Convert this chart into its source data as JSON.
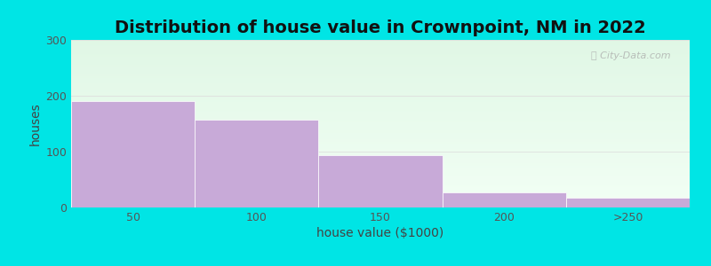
{
  "title": "Distribution of house value in Crownpoint, NM in 2022",
  "xlabel": "house value ($1000)",
  "ylabel": "houses",
  "categories": [
    "50",
    "100",
    "150",
    "200",
    ">250"
  ],
  "values": [
    190,
    157,
    94,
    27,
    17
  ],
  "bar_color": "#c8aad8",
  "bar_edgecolor": "#c8aad8",
  "ylim": [
    0,
    300
  ],
  "yticks": [
    0,
    100,
    200,
    300
  ],
  "background_outer": "#00e5e5",
  "title_fontsize": 14,
  "axis_label_fontsize": 10,
  "tick_fontsize": 9,
  "bar_width": 1.0,
  "figsize": [
    8.0,
    3.0
  ],
  "dpi": 100
}
